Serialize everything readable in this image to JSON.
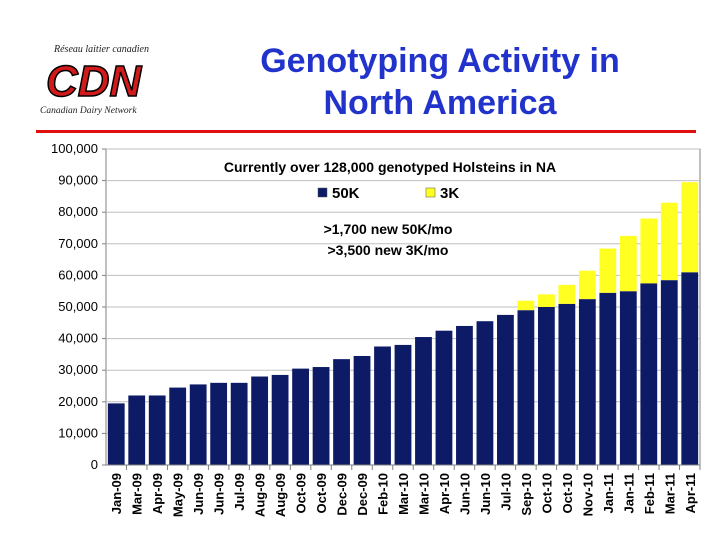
{
  "header": {
    "title_line1": "Genotyping Activity in",
    "title_line2": "North America",
    "logo_top": "Réseau laitier canadien",
    "logo_mark": "CDN",
    "logo_bottom": "Canadian Dairy Network"
  },
  "colors": {
    "title": "#2233cc",
    "rule": "#e01010",
    "series_50k": "#0d1a66",
    "series_3k": "#ffff22"
  },
  "chart_data": {
    "type": "bar",
    "stacked": true,
    "annotation": "Currently over 128,000 genotyped Holsteins in NA",
    "note_line1": ">1,700 new 50K/mo",
    "note_line2": ">3,500 new 3K/mo",
    "legend_position": "top-center",
    "ylim": [
      0,
      100000
    ],
    "yticks": [
      "0",
      "10,000",
      "20,000",
      "30,000",
      "40,000",
      "50,000",
      "60,000",
      "70,000",
      "80,000",
      "90,000",
      "100,000"
    ],
    "grid": true,
    "categories": [
      "Jan-09",
      "Mar-09",
      "Apr-09",
      "May-09",
      "Jun-09",
      "Jun-09",
      "Jul-09",
      "Aug-09",
      "Aug-09",
      "Oct-09",
      "Oct-09",
      "Dec-09",
      "Dec-09",
      "Feb-10",
      "Mar-10",
      "Mar-10",
      "Apr-10",
      "Jun-10",
      "Jun-10",
      "Jul-10",
      "Sep-10",
      "Oct-10",
      "Oct-10",
      "Nov-10",
      "Jan-11",
      "Jan-11",
      "Feb-11",
      "Mar-11",
      "Apr-11"
    ],
    "series": [
      {
        "name": "50K",
        "color": "#0d1a66",
        "values": [
          19500,
          22000,
          22000,
          24500,
          25500,
          26000,
          26000,
          28000,
          28500,
          30500,
          31000,
          33500,
          34500,
          37500,
          38000,
          40500,
          42500,
          44000,
          45500,
          47500,
          49000,
          50000,
          51000,
          52500,
          54500,
          55000,
          57500,
          58500,
          61000
        ]
      },
      {
        "name": "3K",
        "color": "#ffff22",
        "values": [
          0,
          0,
          0,
          0,
          0,
          0,
          0,
          0,
          0,
          0,
          0,
          0,
          0,
          0,
          0,
          0,
          0,
          0,
          0,
          0,
          3000,
          4000,
          6000,
          9000,
          14000,
          17500,
          20500,
          24500,
          28500
        ]
      }
    ]
  }
}
